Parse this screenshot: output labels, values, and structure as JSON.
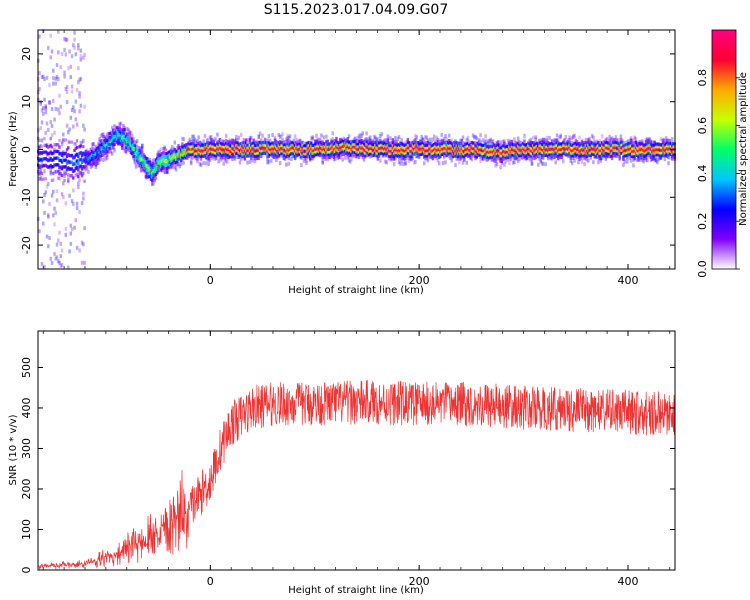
{
  "title": "S115.2023.017.04.09.G07",
  "colors": {
    "snr_line": "#ee3333",
    "colormap": [
      "#ffffff",
      "#7f00ff",
      "#0000ff",
      "#00c8ff",
      "#00ff66",
      "#c8ff00",
      "#ffaa00",
      "#ff0033",
      "#ff0080"
    ]
  },
  "chart_data": [
    {
      "type": "heatmap",
      "title": "",
      "xlabel": "Height of straight line (km)",
      "ylabel": "Frequency (Hz)",
      "xlim": [
        -165,
        445
      ],
      "ylim": [
        -25,
        25
      ],
      "x_ticks": [
        0,
        200,
        400
      ],
      "y_ticks": [
        -20,
        -10,
        0,
        10,
        20
      ],
      "grid": false,
      "colorbar": {
        "label": "Normalized spectral amplitude",
        "range": [
          0,
          1
        ],
        "ticks": [
          "0.0",
          "0.2",
          "0.4",
          "0.6",
          "0.8"
        ]
      },
      "ridge": {
        "x": [
          -150,
          -130,
          -110,
          -100,
          -90,
          -80,
          -70,
          -60,
          -55,
          -50,
          -40,
          -30,
          -20,
          -10,
          0,
          50,
          100,
          130,
          160,
          200,
          250,
          280,
          300,
          350,
          400,
          440
        ],
        "y": [
          -2,
          -3,
          -1,
          1,
          3,
          2,
          -1,
          -4,
          -5,
          -3,
          -2,
          -1,
          0,
          0,
          0,
          0,
          0,
          0.5,
          0,
          0,
          0,
          -0.5,
          0,
          0,
          0,
          0
        ],
        "amplitude": [
          0.25,
          0.3,
          0.35,
          0.4,
          0.45,
          0.45,
          0.5,
          0.55,
          0.5,
          0.55,
          0.6,
          0.7,
          0.85,
          0.9,
          0.95,
          0.95,
          0.9,
          0.9,
          0.95,
          0.95,
          0.95,
          0.9,
          0.95,
          0.95,
          0.95,
          0.95
        ]
      }
    },
    {
      "type": "line",
      "title": "",
      "xlabel": "Height of straight line (km)",
      "ylabel": "SNR (10 * v/v)",
      "xlim": [
        -165,
        445
      ],
      "ylim": [
        0,
        590
      ],
      "x_ticks": [
        0,
        200,
        400
      ],
      "y_ticks": [
        0,
        100,
        200,
        300,
        400,
        500
      ],
      "grid": false,
      "series": [
        {
          "x": [
            -165,
            -140,
            -120,
            -100,
            -80,
            -60,
            -40,
            -20,
            0,
            10,
            20,
            40,
            60,
            100,
            150,
            200,
            250,
            300,
            350,
            400,
            445
          ],
          "values": [
            10,
            12,
            15,
            30,
            50,
            80,
            120,
            150,
            220,
            300,
            360,
            400,
            410,
            410,
            415,
            410,
            410,
            400,
            395,
            390,
            385
          ]
        }
      ]
    }
  ]
}
